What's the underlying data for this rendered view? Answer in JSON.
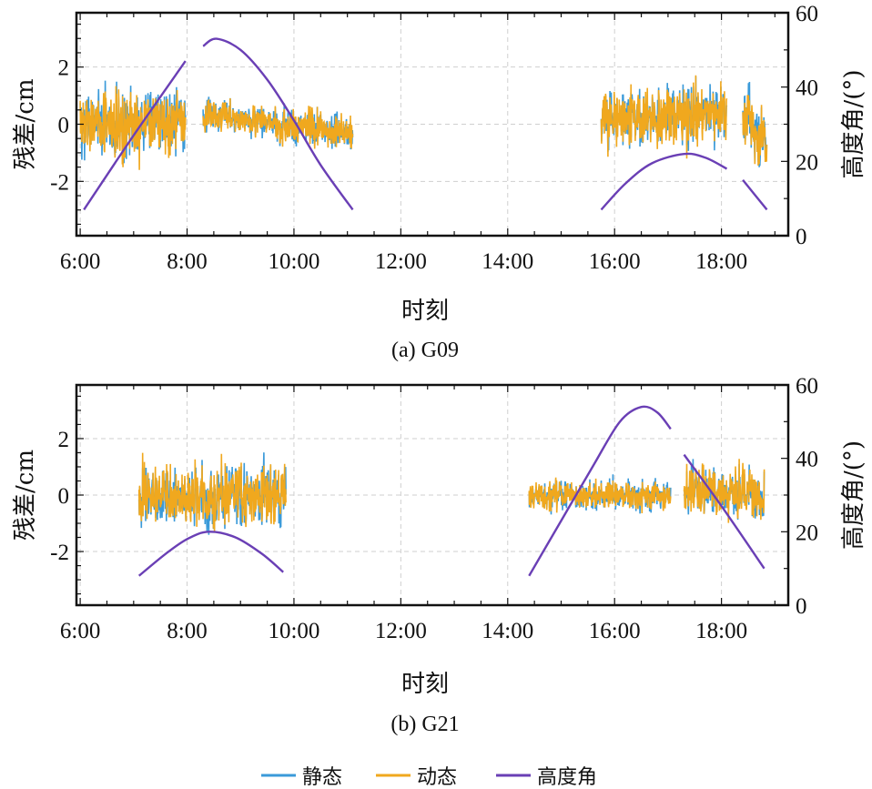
{
  "chart_data": [
    {
      "type": "line",
      "caption": "(a) G09",
      "xlabel": "时刻",
      "ylabel": "残差/cm",
      "y2label": "高度角/(°)",
      "xlim": [
        5.93,
        19.25
      ],
      "ylim": [
        -3.9,
        3.9
      ],
      "y2lim": [
        0,
        60
      ],
      "xticks": [
        6,
        8,
        10,
        12,
        14,
        16,
        18
      ],
      "xtick_labels": [
        "6:00",
        "8:00",
        "10:00",
        "12:00",
        "14:00",
        "16:00",
        "18:00"
      ],
      "yticks": [
        -2,
        0,
        2
      ],
      "ytick_labels": [
        "-2",
        "0",
        "2"
      ],
      "y2ticks": [
        0,
        20,
        40,
        60
      ],
      "y2tick_labels": [
        "0",
        "20",
        "40",
        "60"
      ],
      "grid": true,
      "residual_segments": [
        {
          "start": 6.0,
          "end": 7.97,
          "mean_start": 0,
          "mean_end": 0,
          "amplitude": 1.0
        },
        {
          "start": 8.3,
          "end": 11.1,
          "mean_start": 0.4,
          "mean_end": -0.3,
          "amplitude": 0.5
        },
        {
          "start": 15.75,
          "end": 18.1,
          "mean_start": 0.2,
          "mean_end": 0.4,
          "amplitude": 0.8
        },
        {
          "start": 18.4,
          "end": 18.85,
          "mean_start": 0.4,
          "mean_end": -0.6,
          "amplitude": 0.9
        }
      ],
      "elevation_segments": [
        [
          [
            6.07,
            7
          ],
          [
            7.0,
            27
          ],
          [
            7.97,
            47
          ]
        ],
        [
          [
            8.3,
            51
          ],
          [
            8.55,
            53
          ],
          [
            9.0,
            50
          ],
          [
            9.5,
            42
          ],
          [
            10.0,
            31
          ],
          [
            10.5,
            19
          ],
          [
            11.1,
            7
          ]
        ],
        [
          [
            15.75,
            7
          ],
          [
            16.2,
            14
          ],
          [
            16.7,
            19.5
          ],
          [
            17.3,
            22
          ],
          [
            17.7,
            21
          ],
          [
            18.1,
            18
          ]
        ],
        [
          [
            18.4,
            15
          ],
          [
            18.85,
            7
          ]
        ]
      ]
    },
    {
      "type": "line",
      "caption": "(b) G21",
      "xlabel": "时刻",
      "ylabel": "残差/cm",
      "y2label": "高度角/(°)",
      "xlim": [
        5.93,
        19.25
      ],
      "ylim": [
        -3.9,
        3.9
      ],
      "y2lim": [
        0,
        60
      ],
      "xticks": [
        6,
        8,
        10,
        12,
        14,
        16,
        18
      ],
      "xtick_labels": [
        "6:00",
        "8:00",
        "10:00",
        "12:00",
        "14:00",
        "16:00",
        "18:00"
      ],
      "yticks": [
        -2,
        0,
        2
      ],
      "ytick_labels": [
        "-2",
        "0",
        "2"
      ],
      "y2ticks": [
        0,
        20,
        40,
        60
      ],
      "y2tick_labels": [
        "0",
        "20",
        "40",
        "60"
      ],
      "grid": true,
      "residual_segments": [
        {
          "start": 7.1,
          "end": 9.85,
          "mean_start": 0,
          "mean_end": 0,
          "amplitude": 0.9
        },
        {
          "start": 14.4,
          "end": 17.05,
          "mean_start": 0,
          "mean_end": 0,
          "amplitude": 0.4
        },
        {
          "start": 17.3,
          "end": 18.8,
          "mean_start": 0.2,
          "mean_end": 0.1,
          "amplitude": 0.7
        }
      ],
      "elevation_segments": [
        [
          [
            7.1,
            8
          ],
          [
            7.6,
            14
          ],
          [
            8.0,
            18
          ],
          [
            8.4,
            20
          ],
          [
            8.9,
            18.5
          ],
          [
            9.4,
            14
          ],
          [
            9.8,
            9
          ]
        ],
        [
          [
            14.4,
            8
          ],
          [
            15.0,
            23
          ],
          [
            15.6,
            38
          ],
          [
            16.1,
            50
          ],
          [
            16.5,
            54
          ],
          [
            16.8,
            52.5
          ],
          [
            17.05,
            48
          ]
        ],
        [
          [
            17.3,
            41
          ],
          [
            18.0,
            27
          ],
          [
            18.8,
            10
          ]
        ]
      ]
    }
  ],
  "legend": {
    "placement": "bottom",
    "items": [
      {
        "label": "静态",
        "color": "#3a9ad9"
      },
      {
        "label": "动态",
        "color": "#f0a81e"
      },
      {
        "label": "高度角",
        "color": "#6a3fb5"
      }
    ]
  }
}
